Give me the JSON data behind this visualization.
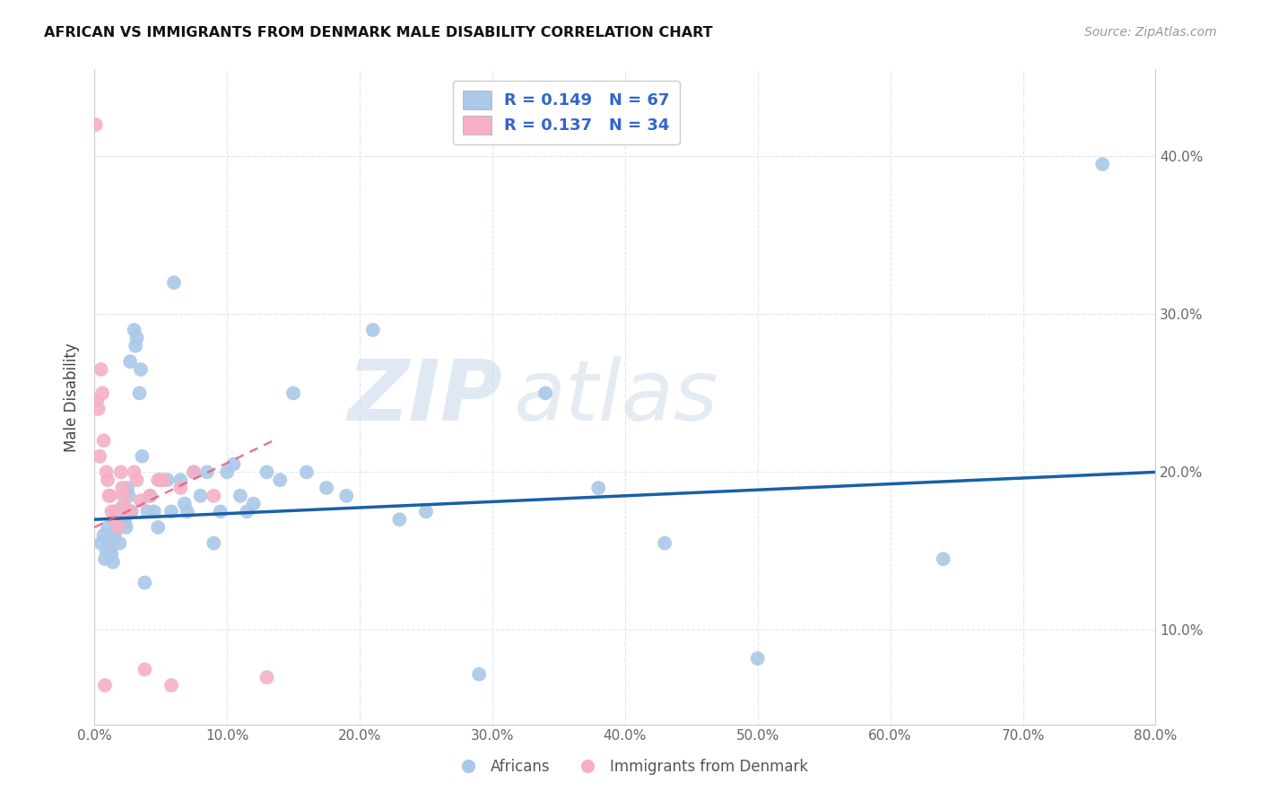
{
  "title": "AFRICAN VS IMMIGRANTS FROM DENMARK MALE DISABILITY CORRELATION CHART",
  "source": "Source: ZipAtlas.com",
  "ylabel": "Male Disability",
  "xlim": [
    0.0,
    0.8
  ],
  "ylim": [
    0.04,
    0.455
  ],
  "africans_R": 0.149,
  "africans_N": 67,
  "denmark_R": 0.137,
  "denmark_N": 34,
  "africans_color": "#aac8e8",
  "denmark_color": "#f5b0c5",
  "africans_line_color": "#1a5fa8",
  "denmark_line_color": "#e06080",
  "legend_text_color": "#3366cc",
  "grid_color": "#dde8f0",
  "watermark_zip": "ZIP",
  "watermark_atlas": "atlas",
  "africans_x": [
    0.005,
    0.007,
    0.008,
    0.009,
    0.01,
    0.011,
    0.012,
    0.013,
    0.014,
    0.015,
    0.016,
    0.017,
    0.018,
    0.019,
    0.02,
    0.021,
    0.022,
    0.023,
    0.024,
    0.025,
    0.026,
    0.027,
    0.028,
    0.03,
    0.031,
    0.032,
    0.034,
    0.035,
    0.036,
    0.038,
    0.04,
    0.042,
    0.045,
    0.048,
    0.05,
    0.055,
    0.058,
    0.06,
    0.065,
    0.068,
    0.07,
    0.075,
    0.08,
    0.085,
    0.09,
    0.095,
    0.1,
    0.105,
    0.11,
    0.115,
    0.12,
    0.13,
    0.14,
    0.15,
    0.16,
    0.175,
    0.19,
    0.21,
    0.23,
    0.25,
    0.29,
    0.34,
    0.38,
    0.43,
    0.5,
    0.64,
    0.76
  ],
  "africans_y": [
    0.155,
    0.16,
    0.145,
    0.15,
    0.165,
    0.155,
    0.15,
    0.148,
    0.143,
    0.158,
    0.162,
    0.17,
    0.165,
    0.155,
    0.175,
    0.178,
    0.172,
    0.168,
    0.165,
    0.19,
    0.185,
    0.27,
    0.175,
    0.29,
    0.28,
    0.285,
    0.25,
    0.265,
    0.21,
    0.13,
    0.175,
    0.185,
    0.175,
    0.165,
    0.195,
    0.195,
    0.175,
    0.32,
    0.195,
    0.18,
    0.175,
    0.2,
    0.185,
    0.2,
    0.155,
    0.175,
    0.2,
    0.205,
    0.185,
    0.175,
    0.18,
    0.2,
    0.195,
    0.25,
    0.2,
    0.19,
    0.185,
    0.29,
    0.17,
    0.175,
    0.072,
    0.25,
    0.19,
    0.155,
    0.082,
    0.145,
    0.395
  ],
  "denmark_x": [
    0.001,
    0.002,
    0.003,
    0.004,
    0.005,
    0.006,
    0.007,
    0.008,
    0.009,
    0.01,
    0.011,
    0.012,
    0.013,
    0.015,
    0.016,
    0.018,
    0.02,
    0.021,
    0.022,
    0.023,
    0.025,
    0.027,
    0.03,
    0.032,
    0.035,
    0.038,
    0.042,
    0.048,
    0.052,
    0.058,
    0.065,
    0.075,
    0.09,
    0.13
  ],
  "denmark_y": [
    0.42,
    0.245,
    0.24,
    0.21,
    0.265,
    0.25,
    0.22,
    0.065,
    0.2,
    0.195,
    0.185,
    0.185,
    0.175,
    0.17,
    0.175,
    0.165,
    0.2,
    0.19,
    0.185,
    0.178,
    0.175,
    0.175,
    0.2,
    0.195,
    0.182,
    0.075,
    0.185,
    0.195,
    0.195,
    0.065,
    0.19,
    0.2,
    0.185,
    0.07
  ],
  "denmark_line_x0": 0.0,
  "denmark_line_y0": 0.165,
  "denmark_line_x1": 0.135,
  "denmark_line_y1": 0.22,
  "africans_line_x0": 0.0,
  "africans_line_y0": 0.17,
  "africans_line_x1": 0.8,
  "africans_line_y1": 0.2
}
